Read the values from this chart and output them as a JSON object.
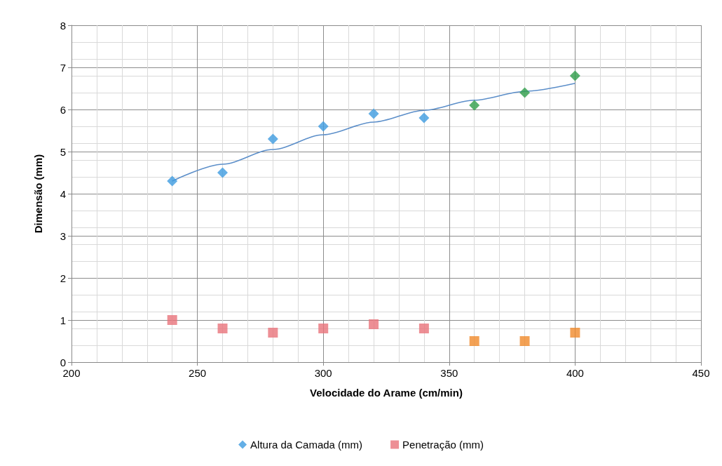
{
  "chart_data": {
    "type": "scatter",
    "xlabel": "Velocidade do Arame (cm/min)",
    "ylabel": "Dimensão (mm)",
    "xlim": [
      200,
      450
    ],
    "xticks": [
      200,
      250,
      300,
      350,
      400,
      450
    ],
    "ylim": [
      0,
      8
    ],
    "yticks": [
      0,
      1,
      2,
      3,
      4,
      5,
      6,
      7,
      8
    ],
    "grid": true,
    "legend": "bottom",
    "series": [
      {
        "name": "Altura da Camada (mm)",
        "marker": "diamond",
        "color": "#3d9be0",
        "x": [
          240,
          260,
          280,
          300,
          320,
          340,
          360,
          380,
          400
        ],
        "values": [
          4.3,
          4.5,
          5.3,
          5.6,
          5.9,
          5.8,
          6.1,
          6.4,
          6.8
        ],
        "colors": [
          "#3d9be0",
          "#3d9be0",
          "#3d9be0",
          "#3d9be0",
          "#3d9be0",
          "#3d9be0",
          "#2e9e4a",
          "#2e9e4a",
          "#2e9e4a"
        ]
      },
      {
        "name": "Penetração (mm)",
        "marker": "square",
        "color": "#e8737a",
        "x": [
          240,
          260,
          280,
          300,
          320,
          340,
          360,
          380,
          400
        ],
        "values": [
          1.0,
          0.8,
          0.7,
          0.8,
          0.9,
          0.8,
          0.5,
          0.5,
          0.7
        ],
        "colors": [
          "#e8737a",
          "#e8737a",
          "#e8737a",
          "#e8737a",
          "#e8737a",
          "#e8737a",
          "#f08a2a",
          "#f08a2a",
          "#f08a2a"
        ]
      },
      {
        "type": "line",
        "marker": "none",
        "color": "#5b8ec9",
        "x": [
          240,
          260,
          280,
          300,
          320,
          340,
          360,
          380,
          400
        ],
        "values": [
          4.3,
          4.7,
          5.05,
          5.4,
          5.7,
          5.98,
          6.22,
          6.43,
          6.62
        ]
      }
    ]
  }
}
